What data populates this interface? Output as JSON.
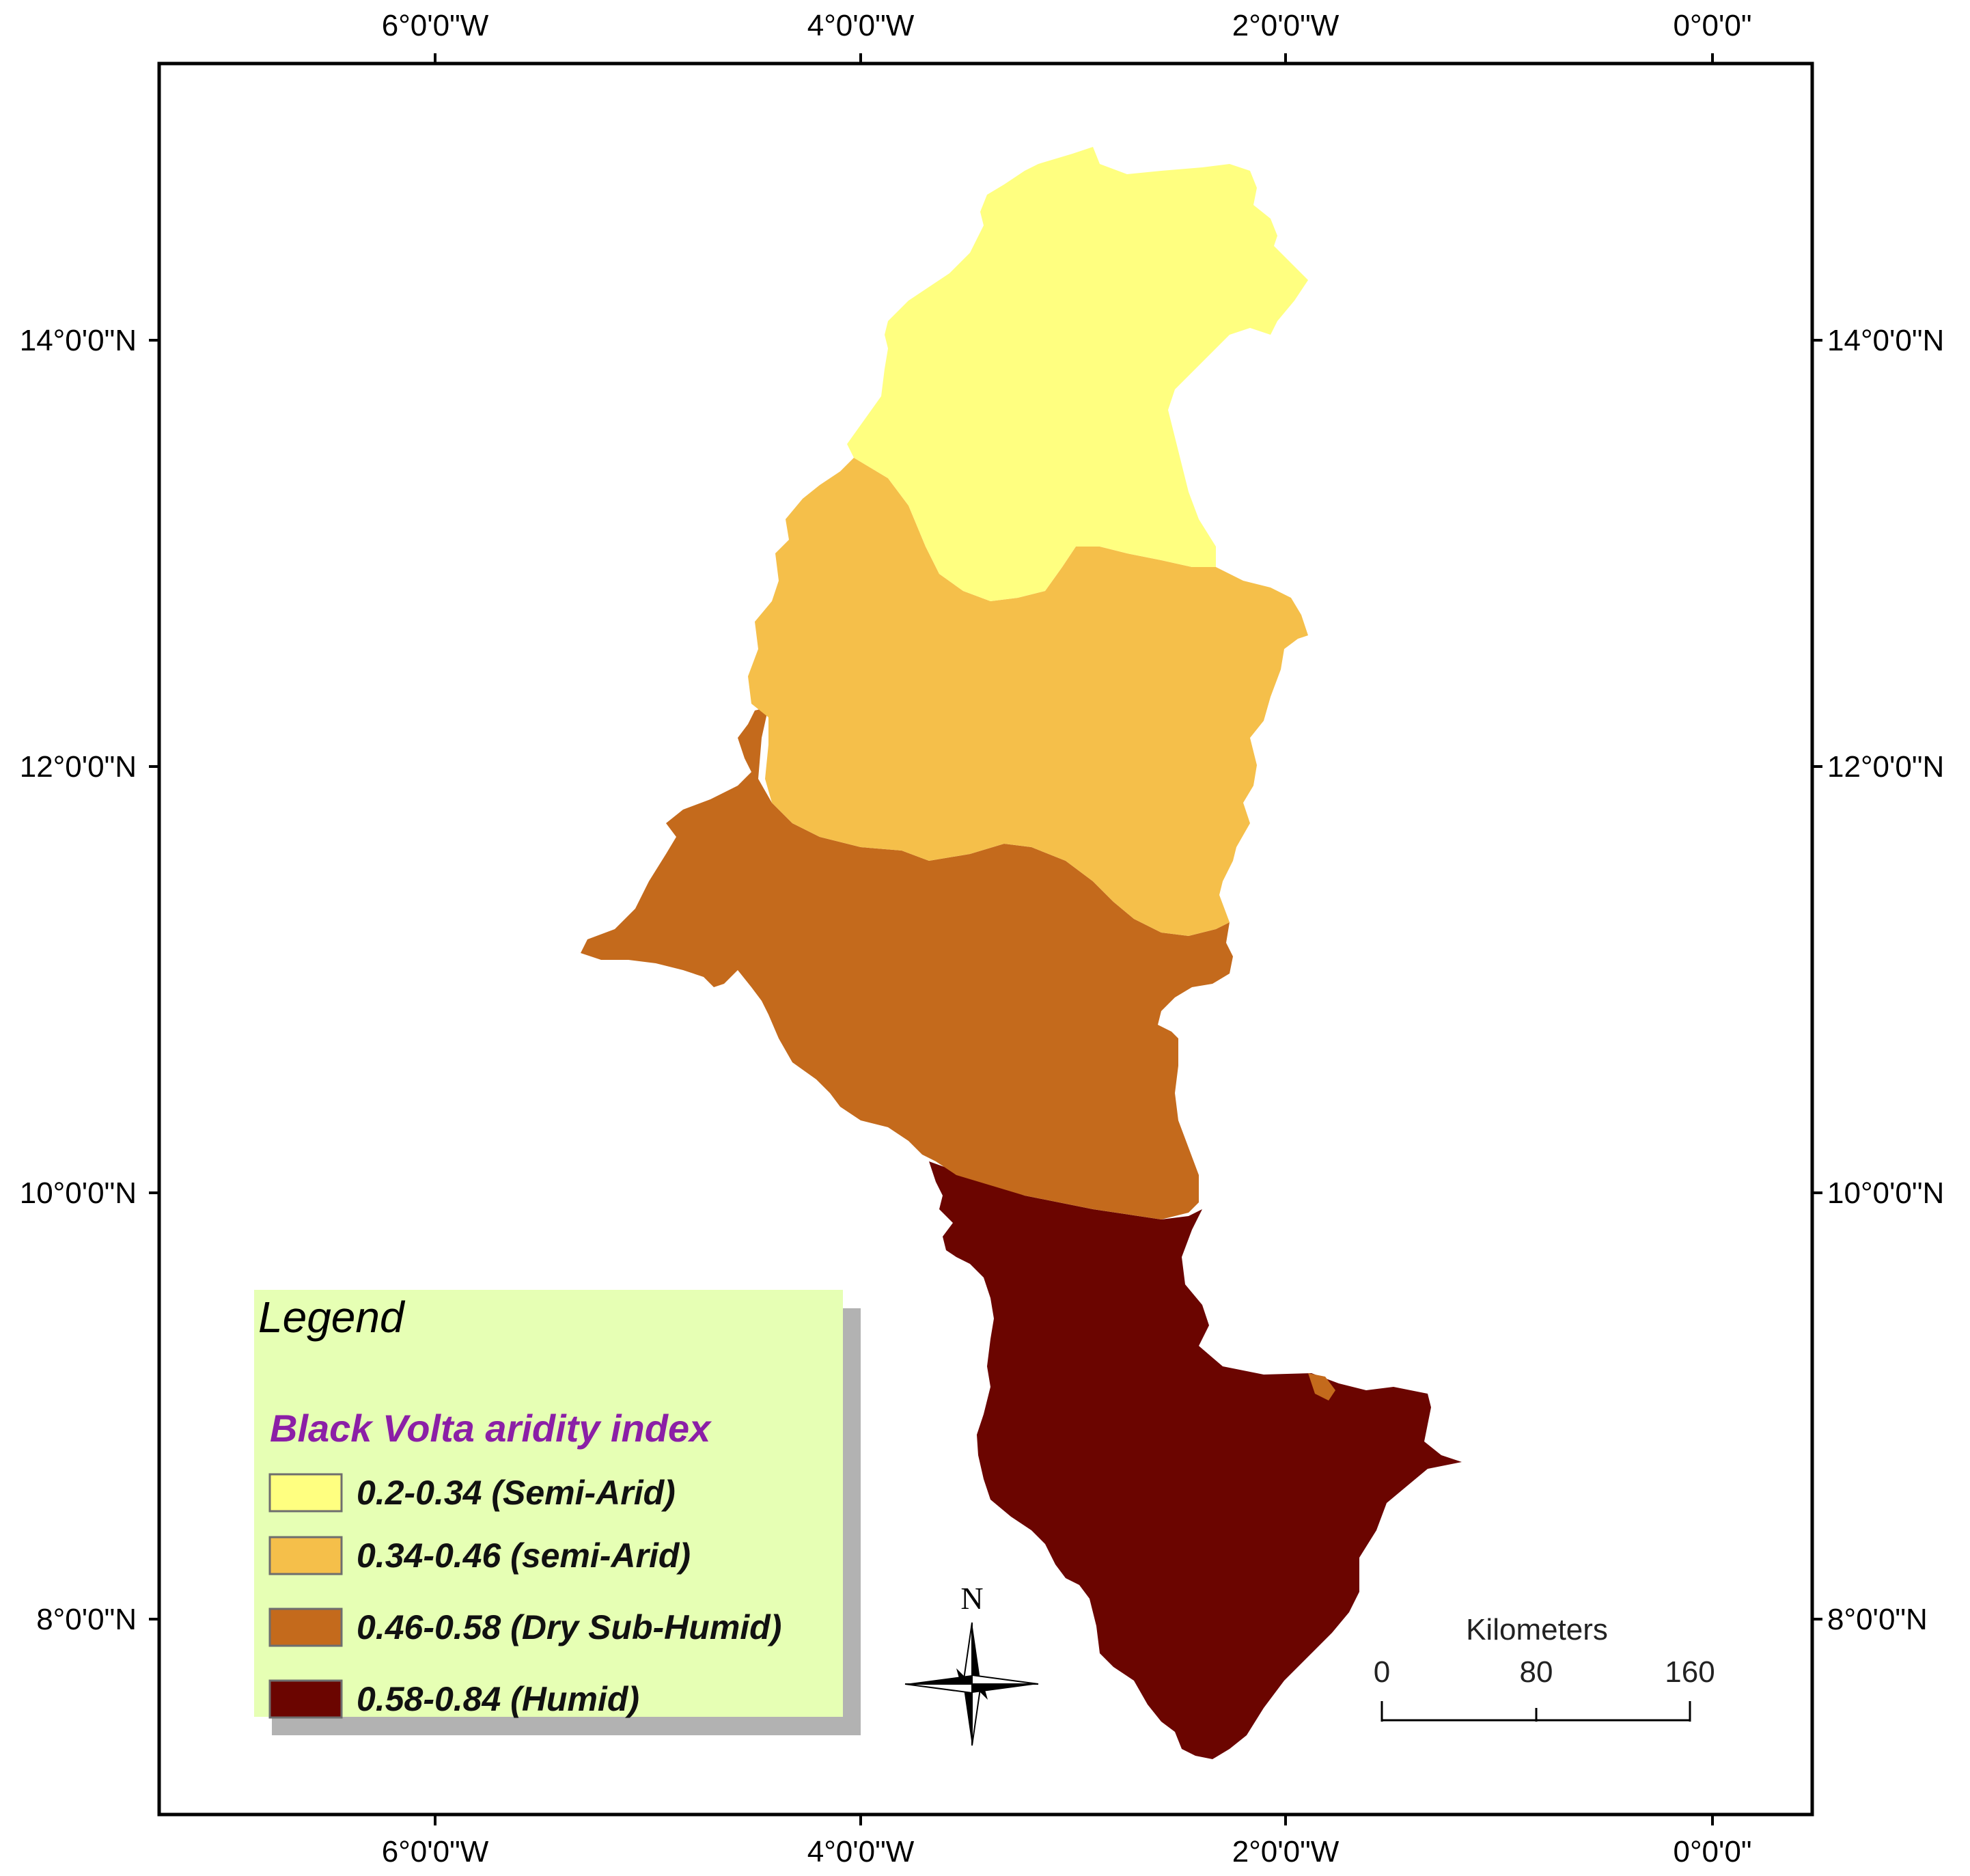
{
  "axes": {
    "top_ticks": [
      "6°0'0\"W",
      "4°0'0\"W",
      "2°0'0\"W",
      "0°0'0\""
    ],
    "bottom_ticks": [
      "6°0'0\"W",
      "4°0'0\"W",
      "2°0'0\"W",
      "0°0'0\""
    ],
    "left_ticks": [
      "14°0'0\"N",
      "12°0'0\"N",
      "10°0'0\"N",
      "8°0'0\"N"
    ],
    "right_ticks": [
      "14°0'0\"N",
      "12°0'0\"N",
      "10°0'0\"N",
      "8°0'0\"N"
    ]
  },
  "legend": {
    "title": "Legend",
    "subtitle": "Black Volta aridity index",
    "items": [
      {
        "label": "0.2-0.34 (Semi-Arid)",
        "color": "#FFFF80"
      },
      {
        "label": "0.34-0.46 (semi-Arid)",
        "color": "#F5BF4A"
      },
      {
        "label": "0.46-0.58 (Dry Sub-Humid)",
        "color": "#C46A1C"
      },
      {
        "label": "0.58-0.84 (Humid)",
        "color": "#6B0500"
      }
    ]
  },
  "scale_bar": {
    "unit": "Kilometers",
    "ticks": [
      "0",
      "80",
      "160"
    ]
  },
  "north_arrow": {
    "label": "N",
    "icon": "north-arrow-icon"
  },
  "colors": {
    "frame": "#000000",
    "legend_bg": "#E6FFB4",
    "legend_shadow": "#B2B2B2",
    "subtitle": "#8B1FA6"
  }
}
